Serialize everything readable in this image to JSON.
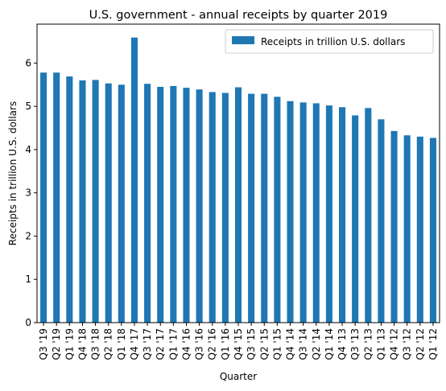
{
  "chart_data": {
    "type": "bar",
    "title": "U.S. government - annual receipts by quarter 2019",
    "xlabel": "Quarter",
    "ylabel": "Receipts in trillion U.S. dollars",
    "ylim": [
      0,
      6.9
    ],
    "yticks": [
      0,
      1,
      2,
      3,
      4,
      5,
      6
    ],
    "grid": false,
    "legend_position": "top-right",
    "bar_color": "#1f77b4",
    "categories": [
      "Q3 '19",
      "Q2 '19",
      "Q1 '19",
      "Q4 '18",
      "Q3 '18",
      "Q2 '18",
      "Q1 '18",
      "Q4 '17",
      "Q3 '17",
      "Q2 '17",
      "Q1 '17",
      "Q4 '16",
      "Q3 '16",
      "Q2 '16",
      "Q1 '16",
      "Q4 '15",
      "Q3 '15",
      "Q2 '15",
      "Q1 '15",
      "Q4 '14",
      "Q3 '14",
      "Q2 '14",
      "Q1 '14",
      "Q4 '13",
      "Q3 '13",
      "Q2 '13",
      "Q1 '13",
      "Q4 '12",
      "Q3 '12",
      "Q2 '12",
      "Q1 '12"
    ],
    "series": [
      {
        "name": "Receipts in trillion U.S. dollars",
        "values": [
          5.78,
          5.78,
          5.69,
          5.6,
          5.61,
          5.53,
          5.5,
          6.59,
          5.52,
          5.45,
          5.47,
          5.43,
          5.39,
          5.33,
          5.31,
          5.44,
          5.29,
          5.29,
          5.22,
          5.12,
          5.09,
          5.07,
          5.02,
          4.98,
          4.79,
          4.96,
          4.7,
          4.43,
          4.33,
          4.3,
          4.27
        ]
      }
    ]
  }
}
